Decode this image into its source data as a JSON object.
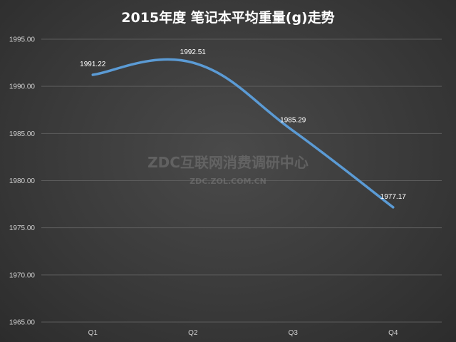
{
  "chart_data": {
    "type": "line",
    "title": "2015年度 笔记本平均重量(g)走势",
    "categories": [
      "Q1",
      "Q2",
      "Q3",
      "Q4"
    ],
    "values": [
      1991.22,
      1992.51,
      1985.29,
      1977.17
    ],
    "data_labels": [
      "1991.22",
      "1992.51",
      "1985.29",
      "1977.17"
    ],
    "ylim": [
      1965,
      1995
    ],
    "yticks": [
      "1965.00",
      "1970.00",
      "1975.00",
      "1980.00",
      "1985.00",
      "1990.00",
      "1995.00"
    ],
    "ytick_values": [
      1965,
      1970,
      1975,
      1980,
      1985,
      1990,
      1995
    ],
    "grid": true,
    "smooth": true,
    "line_color": "#5b9bd5"
  },
  "watermark": {
    "line1": "ZDC互联网消费调研中心",
    "line2": "ZDC.ZOL.COM.CN"
  }
}
